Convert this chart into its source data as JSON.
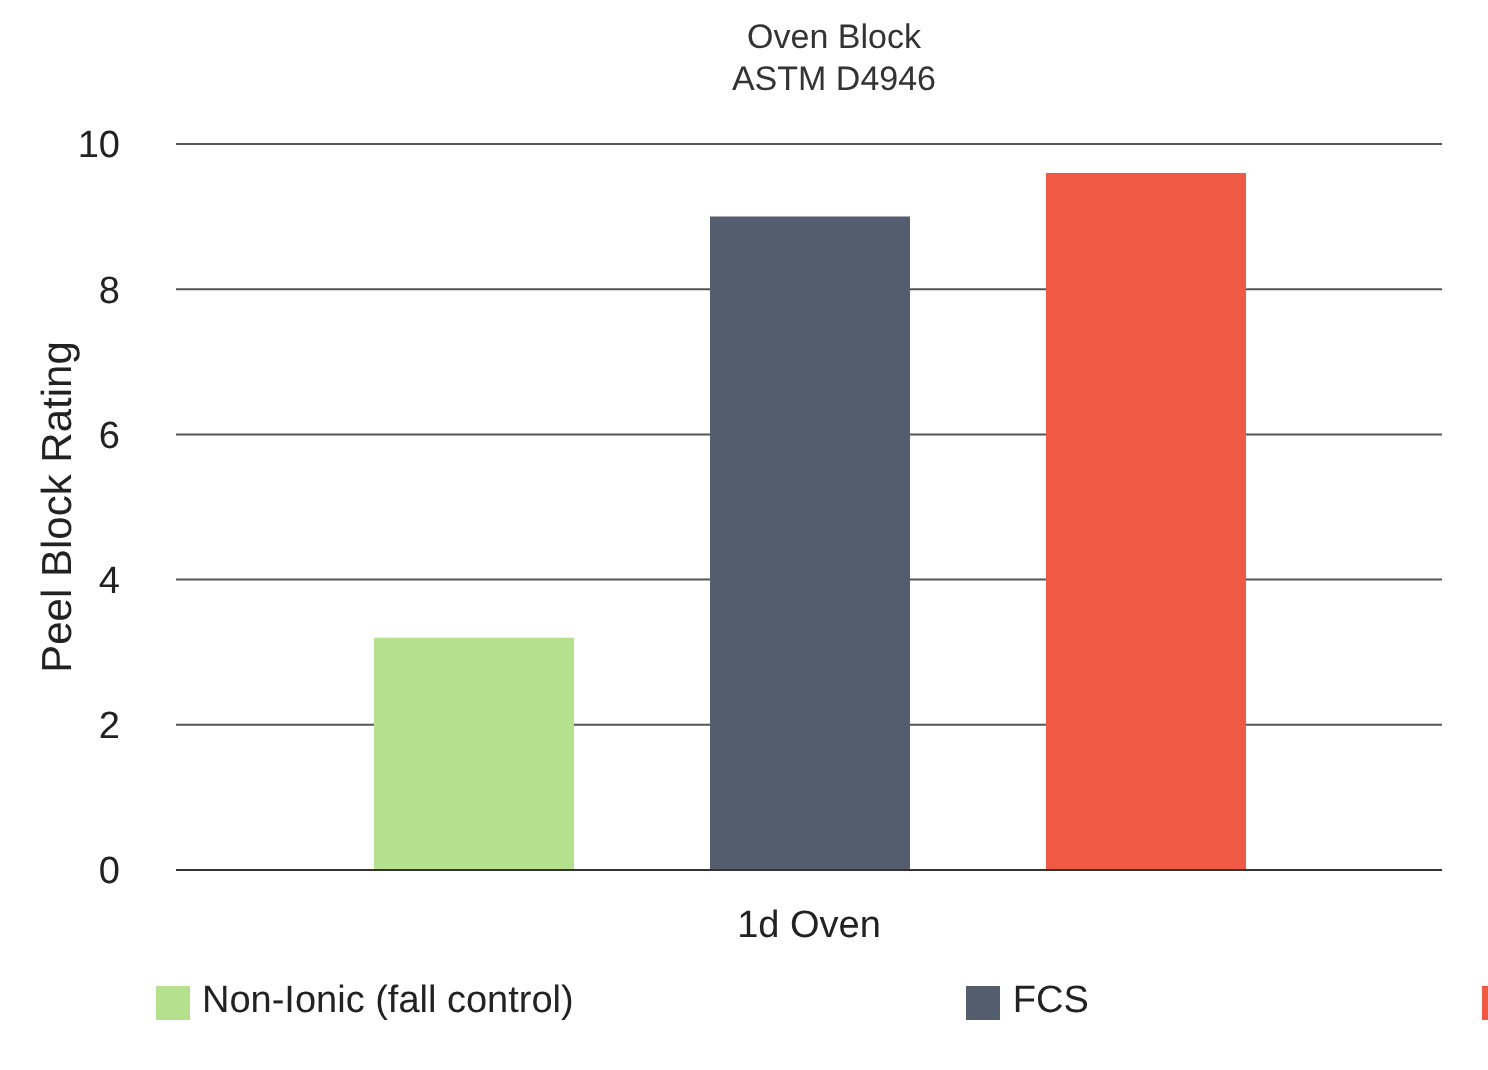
{
  "chart_data": {
    "type": "bar",
    "title": "Oven Block",
    "subtitle": "ASTM D4946",
    "ylabel": "Peel Block Rating",
    "categories": [
      "1d Oven"
    ],
    "series": [
      {
        "name": "Non-Ionic (fall control)",
        "color": "#b5e08d",
        "values": [
          3.2
        ]
      },
      {
        "name": "FCS",
        "color": "#545d6e",
        "values": [
          9.0
        ]
      },
      {
        "color": "#f05a45",
        "values": [
          9.6
        ]
      }
    ],
    "ylim": [
      0,
      10
    ],
    "yticks": [
      0,
      2,
      4,
      6,
      8,
      10
    ],
    "grid": "y",
    "legend": "bottom"
  }
}
